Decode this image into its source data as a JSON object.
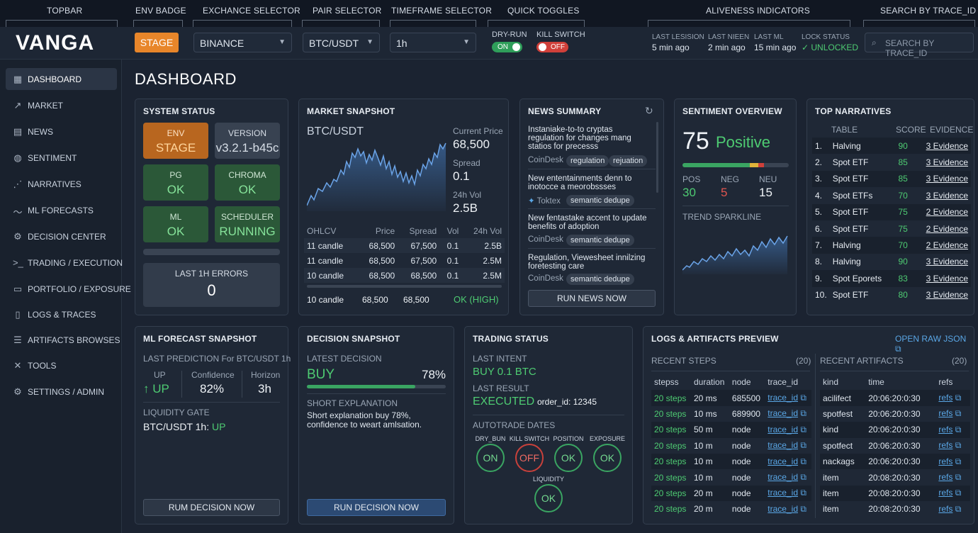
{
  "annotations": [
    "TOPBAR",
    "ENV BADGE",
    "EXCHANCE SELECTOR",
    "PAIR SELECTOR",
    "TIMEFRAME SELECTOR",
    "QUICK TOGGLES",
    "ALIVENESS INDICATORS",
    "SEARCH BY TRACE_ID"
  ],
  "topbar": {
    "logo": "VANGA",
    "env": "STAGE",
    "exchange": "BINANCE",
    "pair": "BTC/USDT",
    "timeframe": "1h",
    "dry_run_label": "DRY-RUN",
    "dry_run_state": "ON",
    "kill_label": "KILL SWITCH",
    "kill_state": "OFF",
    "alive": [
      {
        "label": "LAST LESISION",
        "value": "5 min ago"
      },
      {
        "label": "LAST NIEEN",
        "value": "2 min ago"
      },
      {
        "label": "LAST ML",
        "value": "15 min ago"
      },
      {
        "label": "LOCK STATUS",
        "value": "✓ UNLOCKED"
      }
    ],
    "search_placeholder": "SEARCH BY TRACE_ID"
  },
  "sidebar": [
    "DASHBOARD",
    "MARKET",
    "NEWS",
    "SENTIMENT",
    "NARRATIVES",
    "ML FORECASTS",
    "DECISION CENTER",
    "TRADING / EXECUTION",
    "PORTFOLIO / EXPOSURE",
    "LOGS & TRACES",
    "ARTIFACTS BROWSES",
    "TOOLS",
    "SETTINGS / ADMIN"
  ],
  "page_title": "DASHBOARD",
  "system": {
    "title": "SYSTEM STATUS",
    "tiles": [
      {
        "label": "ENV",
        "value": "STAGE"
      },
      {
        "label": "VERSION",
        "value": "v3.2.1-b45c"
      },
      {
        "label": "PG",
        "value": "OK"
      },
      {
        "label": "CHROMA",
        "value": "OK"
      },
      {
        "label": "ML",
        "value": "OK"
      },
      {
        "label": "SCHEDULER",
        "value": "RUNNING"
      }
    ],
    "errors_label": "LAST 1H ERRORS",
    "errors_value": "0"
  },
  "market": {
    "title": "MARKET SNAPSHOT",
    "pair": "BTC/USDT",
    "price_label": "Current Price",
    "price": "68,500",
    "spread_label": "Spread",
    "spread": "0.1",
    "vol_label": "24h Vol",
    "vol": "2.5B",
    "headers": [
      "OHLCV",
      "Price",
      "Spread",
      "Vol",
      "24h Vol"
    ],
    "rows": [
      [
        "11 candle",
        "68,500",
        "67,500",
        "0.1",
        "2.5B"
      ],
      [
        "11 candle",
        "68,500",
        "67,500",
        "0.1",
        "2.5M"
      ],
      [
        "10 candle",
        "68,500",
        "68,500",
        "0.1",
        "2.5M"
      ]
    ],
    "footer": [
      "10 candle",
      "68,500",
      "68,500",
      "OK (HIGH)"
    ]
  },
  "news": {
    "title": "NEWS SUMMARY",
    "items": [
      {
        "text": "Instaniake-to-to cryptas regulation for changes mang statios for precesss",
        "src": "CoinDesk",
        "chips": [
          "regulation",
          "rejuation"
        ]
      },
      {
        "text": "New ententainments denn to inotocce a meorobssses",
        "src": "Toktex",
        "chips": [
          "semantic dedupe"
        ]
      },
      {
        "text": "New fentastake accent to update benefits of adoption",
        "src": "CoinDesk",
        "chips": [
          "semantic dedupe"
        ]
      },
      {
        "text": "Regulation, Viewesheet innilzing foretesting care",
        "src": "CoinDesk",
        "chips": [
          "semantic dedupe"
        ]
      }
    ],
    "button": "RUN NEWS NOW"
  },
  "sentiment": {
    "title": "SENTIMENT OVERVIEW",
    "score": "75",
    "label": "Positive",
    "pos_label": "POS",
    "pos": "30",
    "neg_label": "NEG",
    "neg": "5",
    "neu_label": "NEU",
    "neu": "15",
    "spark_label": "TREND SPARKLINE"
  },
  "narratives": {
    "title": "TOP NARRATIVES",
    "headers": [
      "TABLE",
      "SCORE",
      "EVIDENCE"
    ],
    "rows": [
      [
        "1.",
        "Halving",
        "90",
        "3 Evidence"
      ],
      [
        "2.",
        "Spot ETF",
        "85",
        "3 Evidence"
      ],
      [
        "3.",
        "Spot ETF",
        "85",
        "3 Evidence"
      ],
      [
        "4.",
        "Spot ETFs",
        "70",
        "3 Evidence"
      ],
      [
        "5.",
        "Spot ETF",
        "75",
        "2 Evidence"
      ],
      [
        "6.",
        "Spot ETF",
        "75",
        "2 Evidence"
      ],
      [
        "7.",
        "Halving",
        "70",
        "2 Evidence"
      ],
      [
        "8.",
        "Halving",
        "90",
        "3 Evidence"
      ],
      [
        "9.",
        "Spot Eporets",
        "83",
        "3 Evidence"
      ],
      [
        "10.",
        "Spot ETF",
        "80",
        "3 Evidence"
      ]
    ]
  },
  "ml": {
    "title": "ML FORECAST SNAPSHOT",
    "last_pred": "LAST PREDICTION For BTC/USDT 1h",
    "up_label": "UP",
    "up_value": "UP",
    "conf_label": "Confidence",
    "conf": "82%",
    "hor_label": "Horizon",
    "hor": "3h",
    "gate_label": "LIQUIDITY GATE",
    "gate_pair": "BTC/USDT 1h:",
    "gate_value": "UP",
    "button": "RUM DECISION NOW"
  },
  "decision": {
    "title": "DECISION SNAPSHOT",
    "latest_label": "LATEST DECISION",
    "decision": "BUY",
    "pct": "78%",
    "progress": 0.78,
    "expl_label": "SHORT EXPLANATION",
    "expl": "Short explanation buy 78%, confidence to weart amlsation.",
    "button": "RUN DECISION NOW"
  },
  "trading": {
    "title": "TRADING STATUS",
    "intent_label": "LAST INTENT",
    "intent": "BUY 0.1 BTC",
    "result_label": "LAST RESULT",
    "result": "EXECUTED",
    "order": "order_id: 12345",
    "auto_label": "AUTOTRADE DATES",
    "circles": [
      {
        "label": "DRY_BUN",
        "value": "ON"
      },
      {
        "label": "KILL SWITCH",
        "value": "OFF"
      },
      {
        "label": "POSITION",
        "value": "OK"
      },
      {
        "label": "EXPOSURE",
        "value": "OK"
      },
      {
        "label": "LIQUIDITY",
        "value": "OK"
      }
    ]
  },
  "logs": {
    "title": "LOGS & ARTIFACTS PREVIEW",
    "raw": "OPEN RAW JSON",
    "steps_label": "RECENT STEPS",
    "steps_count": "(20)",
    "art_label": "RECENT ARTIFACTS",
    "art_count": "(20)",
    "steps_headers": [
      "stepss",
      "duration",
      "node",
      "trace_id"
    ],
    "steps": [
      [
        "20 steps",
        "20 ms",
        "685500",
        "trace_id"
      ],
      [
        "20 steps",
        "10 ms",
        "689900",
        "trace_id"
      ],
      [
        "20 steps",
        "50 m",
        "node",
        "trace_id"
      ],
      [
        "20 steps",
        "10 m",
        "node",
        "trace_id"
      ],
      [
        "20 steps",
        "10 m",
        "node",
        "trace_id"
      ],
      [
        "20 steps",
        "10 m",
        "node",
        "trace_id"
      ],
      [
        "20 steps",
        "20 m",
        "node",
        "trace_id"
      ],
      [
        "20 steps",
        "20 m",
        "node",
        "trace_id"
      ]
    ],
    "art_headers": [
      "kind",
      "time",
      "refs"
    ],
    "arts": [
      [
        "acilifect",
        "20:06:20:0:30",
        "refs"
      ],
      [
        "spotfest",
        "20:06:20:0:30",
        "refs"
      ],
      [
        "kind",
        "20:06:20:0:30",
        "refs"
      ],
      [
        "spotfect",
        "20:06:20:0:30",
        "refs"
      ],
      [
        "nackags",
        "20:06:20:0:30",
        "refs"
      ],
      [
        "item",
        "20:08:20:0:30",
        "refs"
      ],
      [
        "item",
        "20:08:20:0:30",
        "refs"
      ],
      [
        "item",
        "20:08:20:0:30",
        "refs"
      ]
    ]
  },
  "colors": {
    "accent": "#e8862a",
    "green": "#4ecb72",
    "red": "#e2554f",
    "link": "#5aa7e6"
  }
}
